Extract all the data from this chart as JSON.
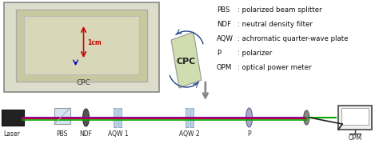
{
  "legend_lines": [
    [
      "PBS",
      ": polarized beam splitter"
    ],
    [
      "NDF",
      ": neutral density filter"
    ],
    [
      "AQW",
      ": achromatic quarter-wave plate"
    ],
    [
      "P",
      ": polarizer"
    ],
    [
      "OPM",
      ": optical power meter"
    ]
  ],
  "component_labels": [
    "Laser",
    "PBS",
    "NDF",
    "AQW 1",
    "AQW 2",
    "P",
    "OPM"
  ],
  "beam_colors": [
    "#cc0000",
    "#aa00cc",
    "#00aa00"
  ],
  "bg_color": "#ffffff",
  "cpc_label": "CPC",
  "photo_label": "CPC",
  "scale_label": "1cm",
  "scale_color": "#cc0000"
}
